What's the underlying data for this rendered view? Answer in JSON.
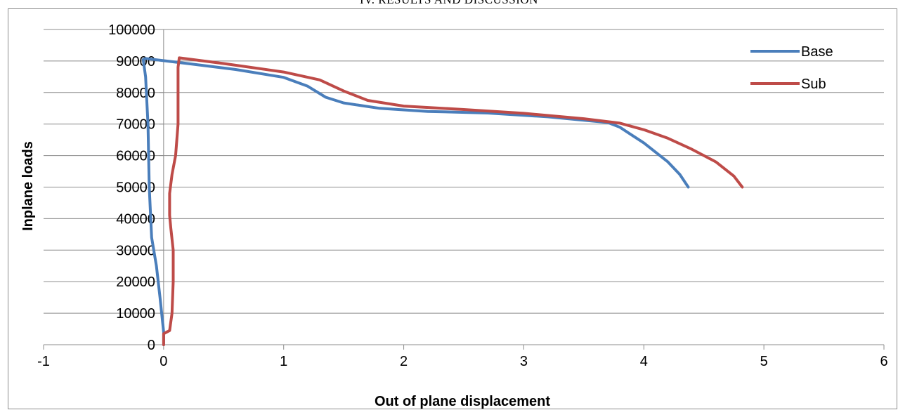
{
  "page": {
    "heading": "IV. RESULTS AND DISCUSSION"
  },
  "chart_data": {
    "type": "line",
    "title": "",
    "xlabel": "Out of plane displacement",
    "ylabel": "Inplane loads",
    "xlim": [
      -1,
      6
    ],
    "ylim": [
      0,
      100000
    ],
    "x_ticks": [
      -1,
      0,
      1,
      2,
      3,
      4,
      5,
      6
    ],
    "y_ticks": [
      0,
      10000,
      20000,
      30000,
      40000,
      50000,
      60000,
      70000,
      80000,
      90000,
      100000
    ],
    "grid": "horizontal",
    "legend_position": "top-right",
    "series": [
      {
        "name": "Base",
        "color": "#4a7ebb",
        "x": [
          0.0,
          0.0,
          -0.03,
          -0.06,
          -0.1,
          -0.12,
          -0.13,
          -0.15,
          -0.17,
          -0.15,
          0.2,
          0.6,
          1.0,
          1.2,
          1.35,
          1.5,
          1.8,
          2.2,
          2.7,
          3.2,
          3.5,
          3.7,
          3.8,
          3.9,
          4.0,
          4.1,
          4.2,
          4.3,
          4.37
        ],
        "y": [
          0,
          4000,
          15000,
          25000,
          34000,
          50000,
          70000,
          85000,
          90500,
          90800,
          89200,
          87300,
          84800,
          82000,
          78500,
          76700,
          75000,
          74000,
          73500,
          72300,
          71200,
          70500,
          69000,
          66500,
          64000,
          61000,
          58000,
          54000,
          50000
        ]
      },
      {
        "name": "Sub",
        "color": "#be4b48",
        "x": [
          0.0,
          0.0,
          0.05,
          0.07,
          0.08,
          0.08,
          0.06,
          0.05,
          0.05,
          0.07,
          0.1,
          0.12,
          0.12,
          0.12,
          0.13,
          0.5,
          1.0,
          1.3,
          1.5,
          1.7,
          2.0,
          2.5,
          3.0,
          3.5,
          3.8,
          4.0,
          4.2,
          4.4,
          4.6,
          4.75,
          4.82
        ],
        "y": [
          0,
          3500,
          4500,
          10000,
          20000,
          30000,
          37000,
          41000,
          48000,
          54000,
          60000,
          70000,
          80000,
          88000,
          91000,
          89200,
          86500,
          84000,
          80500,
          77500,
          75700,
          74600,
          73400,
          71700,
          70300,
          68200,
          65500,
          62000,
          58000,
          53500,
          50000
        ]
      }
    ]
  }
}
